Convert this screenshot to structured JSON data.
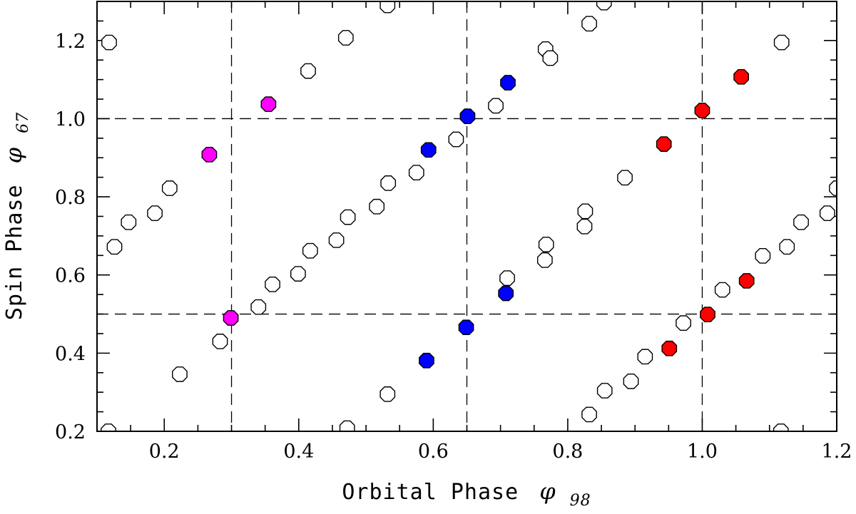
{
  "chart_data": {
    "type": "scatter",
    "title": "",
    "xlabel": {
      "text": "Orbital Phase",
      "symbol": "φ",
      "subscript": "98"
    },
    "ylabel": {
      "text": "Spin Phase",
      "symbol": "φ",
      "subscript": "67"
    },
    "xlim": [
      0.1,
      1.2
    ],
    "ylim": [
      0.2,
      1.3
    ],
    "x_ticks_major": [
      0.2,
      0.4,
      0.6,
      0.8,
      1.0,
      1.2
    ],
    "x_tick_labels": [
      "0.2",
      "0.4",
      "0.6",
      "0.8",
      "1.0",
      "1.2"
    ],
    "y_ticks_major": [
      0.2,
      0.4,
      0.6,
      0.8,
      1.0,
      1.2
    ],
    "y_tick_labels": [
      "0.2",
      "0.4",
      "0.6",
      "0.8",
      "1.0",
      "1.2"
    ],
    "x_minor_step": 0.05,
    "y_minor_step": 0.05,
    "reference_lines": {
      "vertical": [
        0.3,
        0.65,
        1.0
      ],
      "horizontal": [
        0.5,
        1.0
      ]
    },
    "colors": {
      "open": "#ffffff",
      "magenta": "#ff00ff",
      "blue": "#0000ff",
      "red": "#ff0000"
    },
    "series": [
      {
        "name": "open",
        "points": [
          [
            0.118,
            1.195
          ],
          [
            0.117,
            0.2
          ],
          [
            0.126,
            0.672
          ],
          [
            0.147,
            0.735
          ],
          [
            0.186,
            0.758
          ],
          [
            0.208,
            0.822
          ],
          [
            0.223,
            0.346
          ],
          [
            0.283,
            0.43
          ],
          [
            0.34,
            0.518
          ],
          [
            0.361,
            0.576
          ],
          [
            0.399,
            0.603
          ],
          [
            0.414,
            1.122
          ],
          [
            0.417,
            0.662
          ],
          [
            0.456,
            0.689
          ],
          [
            0.47,
            1.207
          ],
          [
            0.473,
            0.748
          ],
          [
            0.472,
            0.208
          ],
          [
            0.516,
            0.775
          ],
          [
            0.532,
            1.29
          ],
          [
            0.533,
            0.835
          ],
          [
            0.532,
            0.295
          ],
          [
            0.575,
            0.862
          ],
          [
            0.634,
            0.947
          ],
          [
            0.693,
            1.033
          ],
          [
            0.71,
            0.592
          ],
          [
            0.767,
            1.178
          ],
          [
            0.774,
            1.155
          ],
          [
            0.766,
            0.638
          ],
          [
            0.768,
            0.678
          ],
          [
            0.825,
            0.724
          ],
          [
            0.826,
            0.763
          ],
          [
            0.832,
            1.243
          ],
          [
            0.832,
            0.243
          ],
          [
            0.854,
            1.297
          ],
          [
            0.855,
            0.304
          ],
          [
            0.885,
            0.849
          ],
          [
            0.894,
            0.328
          ],
          [
            0.915,
            0.391
          ],
          [
            0.972,
            0.477
          ],
          [
            1.03,
            0.562
          ],
          [
            1.09,
            0.649
          ],
          [
            1.118,
            1.195
          ],
          [
            1.117,
            0.2
          ],
          [
            1.126,
            0.672
          ],
          [
            1.147,
            0.735
          ],
          [
            1.186,
            0.758
          ],
          [
            1.2,
            0.822
          ]
        ]
      },
      {
        "name": "magenta",
        "points": [
          [
            0.267,
            0.908
          ],
          [
            0.299,
            0.49
          ],
          [
            0.355,
            1.037
          ]
        ]
      },
      {
        "name": "blue",
        "points": [
          [
            0.59,
            0.381
          ],
          [
            0.593,
            0.92
          ],
          [
            0.649,
            0.466
          ],
          [
            0.651,
            1.006
          ],
          [
            0.708,
            0.553
          ],
          [
            0.711,
            1.092
          ]
        ]
      },
      {
        "name": "red",
        "points": [
          [
            0.943,
            0.935
          ],
          [
            0.951,
            0.412
          ],
          [
            1.0,
            1.021
          ],
          [
            1.008,
            0.499
          ],
          [
            1.058,
            1.107
          ],
          [
            1.066,
            0.585
          ]
        ]
      }
    ]
  }
}
